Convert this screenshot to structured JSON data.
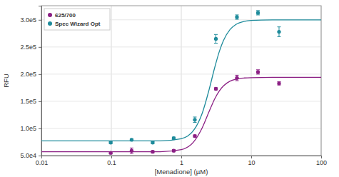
{
  "chart_data": {
    "type": "scatter",
    "x_label": "[Menadione] (µM)",
    "y_label": "RFU",
    "log": "x",
    "grid": true,
    "legend": "top-left",
    "xlim": [
      0.01,
      100
    ],
    "xticks": [
      0.01,
      0.1,
      1,
      10,
      100
    ],
    "ylim": [
      50000,
      326000
    ],
    "yticks": [
      {
        "value": 50000,
        "label": "5.0e4"
      },
      {
        "value": 100000,
        "label": "1.0e5"
      },
      {
        "value": 150000,
        "label": "1.5e5"
      },
      {
        "value": 200000,
        "label": "2.0e5"
      },
      {
        "value": 250000,
        "label": "2.5e5"
      },
      {
        "value": 300000,
        "label": "3.0e5"
      }
    ],
    "series": [
      {
        "name": "625/700",
        "type": "scatter",
        "marker": "circle",
        "color": "#8b1f84",
        "x": [
          0.098,
          0.195,
          0.39,
          0.78,
          1.5625,
          3.125,
          6.25,
          12.5,
          25
        ],
        "values": [
          55000,
          59000,
          57000,
          59000,
          86000,
          173000,
          193000,
          204000,
          183000
        ],
        "errors": [
          2000,
          5000,
          2000,
          2000,
          2000,
          2000,
          5000,
          4000,
          3000
        ]
      },
      {
        "name": "Spec Wizard Opt",
        "type": "scatter",
        "marker": "circle",
        "color": "#1e8b9b",
        "x": [
          0.098,
          0.195,
          0.39,
          0.78,
          1.5625,
          3.125,
          6.25,
          12.5,
          25
        ],
        "values": [
          74000,
          79000,
          74000,
          82000,
          116000,
          265000,
          305000,
          313000,
          278000
        ],
        "errors": [
          2000,
          2000,
          2000,
          2000,
          5000,
          8000,
          4000,
          4000,
          9000
        ]
      },
      {
        "type": "line",
        "line_style": "solid",
        "color": "#8b1f84",
        "x": [
          0.01,
          0.1,
          0.5,
          1,
          1.5,
          2,
          2.5,
          3,
          3.5,
          4,
          5,
          6,
          8,
          10,
          20,
          50,
          100
        ],
        "values": [
          57000,
          57000,
          57100,
          61000,
          75100,
          101600,
          131100,
          154200,
          169200,
          178200,
          187100,
          190600,
          192900,
          193500,
          194000,
          194000,
          194000
        ]
      },
      {
        "type": "line",
        "line_style": "solid",
        "color": "#1e8b9b",
        "x": [
          0.01,
          0.1,
          0.5,
          1,
          1.5,
          2,
          2.5,
          3,
          3.5,
          4,
          5,
          6,
          8,
          10,
          20,
          50,
          100
        ],
        "values": [
          77000,
          77000,
          77200,
          81100,
          96400,
          128600,
          171500,
          211700,
          241700,
          261600,
          282500,
          291200,
          297100,
          298800,
          299900,
          300000,
          300000
        ]
      }
    ]
  }
}
